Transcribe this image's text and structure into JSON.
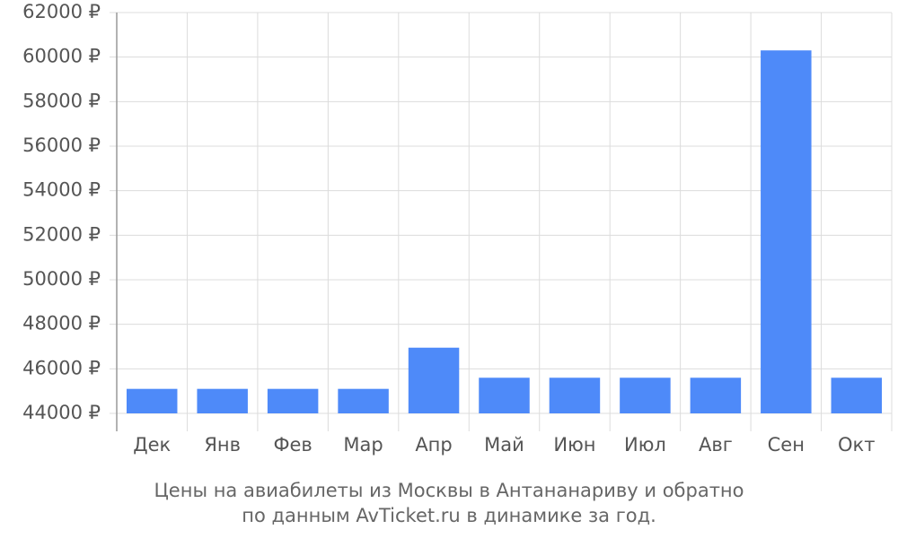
{
  "chart_data": {
    "type": "bar",
    "title": [
      "Цены на авиабилеты из Москвы в Антананариву и обратно",
      "по данным AvTicket.ru в динамике за год."
    ],
    "categories": [
      "Дек",
      "Янв",
      "Фев",
      "Мар",
      "Апр",
      "Май",
      "Июн",
      "Июл",
      "Авг",
      "Сен",
      "Окт"
    ],
    "values": [
      45100,
      45100,
      45100,
      45100,
      46950,
      45600,
      45600,
      45600,
      45600,
      60300,
      45600
    ],
    "color": "#4e8af9",
    "ylim": [
      44000,
      62000
    ],
    "yticks": [
      {
        "value": 44000,
        "label": "44000 ₽"
      },
      {
        "value": 46000,
        "label": "46000 ₽"
      },
      {
        "value": 48000,
        "label": "48000 ₽"
      },
      {
        "value": 50000,
        "label": "50000 ₽"
      },
      {
        "value": 52000,
        "label": "52000 ₽"
      },
      {
        "value": 54000,
        "label": "54000 ₽"
      },
      {
        "value": 56000,
        "label": "56000 ₽"
      },
      {
        "value": 58000,
        "label": "58000 ₽"
      },
      {
        "value": 60000,
        "label": "60000 ₽"
      },
      {
        "value": 62000,
        "label": "62000 ₽"
      }
    ],
    "grid": true
  }
}
